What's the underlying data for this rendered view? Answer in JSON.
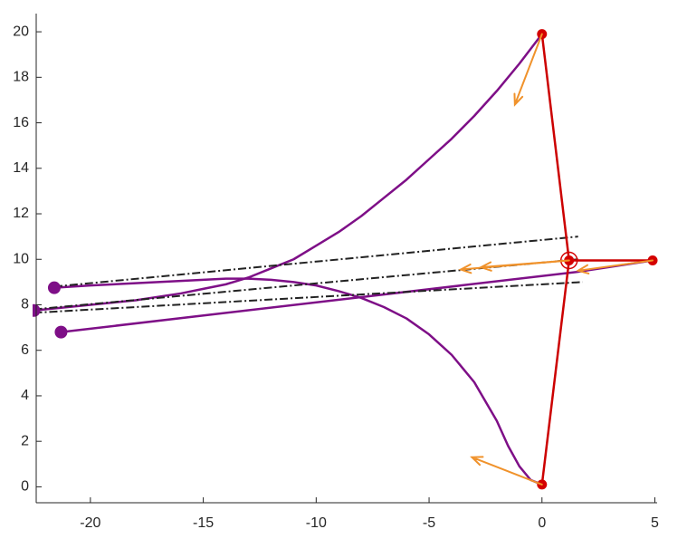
{
  "chart_data": {
    "type": "line",
    "xlim": [
      -22.4,
      5.1
    ],
    "ylim": [
      -0.7,
      20.8
    ],
    "xticks": [
      -20,
      -15,
      -10,
      -5,
      0,
      5
    ],
    "yticks": [
      0,
      2,
      4,
      6,
      8,
      10,
      12,
      14,
      16,
      18,
      20
    ],
    "series": [
      {
        "color": "#7e0f87",
        "style": "solid",
        "x": [
          0,
          -1,
          -2,
          -3,
          -4,
          -5,
          -6,
          -7,
          -8,
          -9,
          -10,
          -11,
          -12,
          -13,
          -14,
          -15,
          -16,
          -17,
          -18,
          -19,
          -20,
          -21,
          -22.5
        ],
        "values": [
          19.9,
          18.6,
          17.4,
          16.3,
          15.3,
          14.4,
          13.5,
          12.7,
          11.9,
          11.2,
          10.6,
          10.0,
          9.6,
          9.2,
          8.9,
          8.7,
          8.5,
          8.35,
          8.2,
          8.1,
          8.0,
          7.9,
          7.75
        ]
      },
      {
        "color": "#7e0f87",
        "style": "solid",
        "x": [
          0,
          -0.5,
          -1,
          -1.5,
          -2,
          -3,
          -4,
          -5,
          -6,
          -7,
          -8,
          -9,
          -10,
          -11,
          -12,
          -13,
          -14,
          -15,
          -16,
          -18,
          -20,
          -21.6
        ],
        "values": [
          0.1,
          0.3,
          0.9,
          1.8,
          2.9,
          4.6,
          5.8,
          6.7,
          7.4,
          7.9,
          8.3,
          8.6,
          8.85,
          9.0,
          9.1,
          9.15,
          9.15,
          9.1,
          9.05,
          8.95,
          8.85,
          8.75
        ]
      },
      {
        "color": "#7e0f87",
        "style": "solid",
        "x": [
          4.9,
          1.6,
          -21.3
        ],
        "values": [
          9.95,
          9.45,
          6.8
        ]
      },
      {
        "color": "#222222",
        "style": "dashdot",
        "x": [
          -21.6,
          1.6
        ],
        "values": [
          8.8,
          11.0
        ]
      },
      {
        "color": "#222222",
        "style": "dashdot",
        "x": [
          -22.5,
          1.6
        ],
        "values": [
          7.8,
          10.0
        ]
      },
      {
        "color": "#222222",
        "style": "dashdot",
        "x": [
          -22.5,
          1.8
        ],
        "values": [
          7.65,
          9.0
        ]
      },
      {
        "color": "#cc0000",
        "style": "solid",
        "x": [
          0,
          1.2,
          0
        ],
        "values": [
          19.9,
          9.95,
          0.1
        ]
      },
      {
        "color": "#cc0000",
        "style": "solid",
        "x": [
          1.2,
          4.9
        ],
        "values": [
          9.95,
          9.95
        ]
      },
      {
        "color": "#7e0f87",
        "style": "none",
        "marker": "dot",
        "x": [
          -21.6,
          -22.5,
          -21.3
        ],
        "values": [
          8.75,
          7.75,
          6.8
        ]
      },
      {
        "color": "#d40000",
        "style": "none",
        "marker": "dot",
        "x": [
          0,
          0,
          4.9,
          1.2
        ],
        "values": [
          19.9,
          0.1,
          9.95,
          9.95
        ]
      },
      {
        "color": "#d40000",
        "style": "none",
        "marker": "ring",
        "x": [
          1.2
        ],
        "values": [
          9.95
        ]
      }
    ],
    "arrows": {
      "color": "#f0922b",
      "x": [
        0,
        0,
        4.9,
        1.2,
        1.2
      ],
      "y": [
        19.9,
        0.1,
        9.95,
        9.95,
        9.95
      ],
      "u": [
        -1.2,
        -3.1,
        -3.3,
        -4.8,
        -3.9
      ],
      "v": [
        -3.1,
        1.2,
        -0.45,
        -0.4,
        -0.3
      ]
    }
  }
}
